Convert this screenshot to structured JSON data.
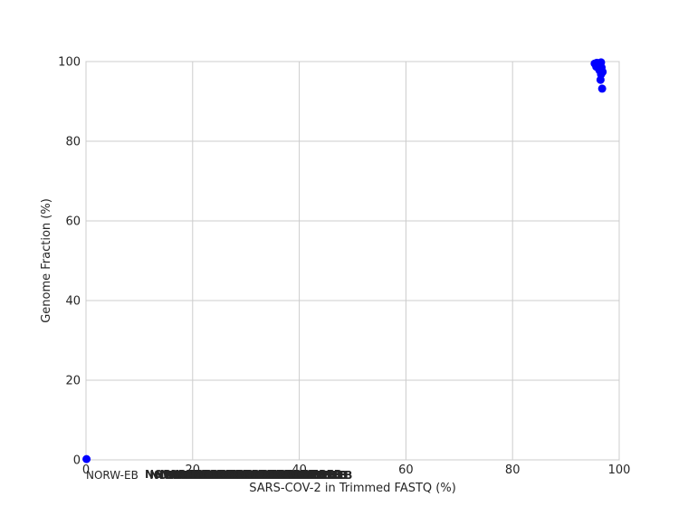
{
  "chart_data": {
    "type": "scatter",
    "title": "",
    "xlabel": "SARS-COV-2 in Trimmed FASTQ (%)",
    "ylabel": "Genome Fraction (%)",
    "xlim": [
      0,
      100
    ],
    "ylim": [
      0,
      100
    ],
    "xticks": [
      0,
      20,
      40,
      60,
      80,
      100
    ],
    "yticks": [
      0,
      20,
      40,
      60,
      80,
      100
    ],
    "grid": true,
    "point_color": "#0000ff",
    "points": [
      {
        "x": 95.4,
        "y": 99.5
      },
      {
        "x": 95.8,
        "y": 99.7
      },
      {
        "x": 96.2,
        "y": 99.6
      },
      {
        "x": 96.6,
        "y": 99.8
      },
      {
        "x": 95.9,
        "y": 99.2
      },
      {
        "x": 96.4,
        "y": 99.1
      },
      {
        "x": 95.7,
        "y": 98.7
      },
      {
        "x": 96.1,
        "y": 98.3
      },
      {
        "x": 96.7,
        "y": 98.5
      },
      {
        "x": 96.3,
        "y": 97.8
      },
      {
        "x": 96.9,
        "y": 97.4
      },
      {
        "x": 96.6,
        "y": 96.8
      },
      {
        "x": 96.5,
        "y": 95.4
      },
      {
        "x": 96.8,
        "y": 93.2
      },
      {
        "x": 0.1,
        "y": 0.2
      }
    ],
    "point_labels_visible": "NORW-EB"
  }
}
